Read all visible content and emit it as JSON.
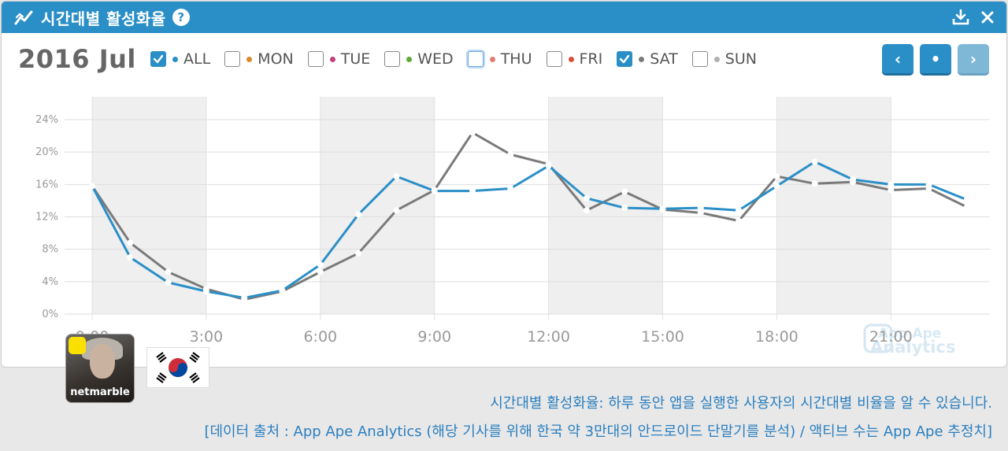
{
  "header": {
    "title": "시간대별 활성화율",
    "help_label": "?"
  },
  "period_label": "2016 Jul",
  "legend": [
    {
      "label": "ALL",
      "checked": true,
      "color": "#2b8fc7"
    },
    {
      "label": "MON",
      "checked": false,
      "color": "#d8892b"
    },
    {
      "label": "TUE",
      "checked": false,
      "color": "#c0407a"
    },
    {
      "label": "WED",
      "checked": false,
      "color": "#5aaa3a"
    },
    {
      "label": "THU",
      "checked": false,
      "color": "#e07b73",
      "focused": true
    },
    {
      "label": "FRI",
      "checked": false,
      "color": "#d9503a"
    },
    {
      "label": "SAT",
      "checked": true,
      "color": "#7a7a7a"
    },
    {
      "label": "SUN",
      "checked": false,
      "color": "#b0b0b0"
    }
  ],
  "nav": {
    "prev": "‹",
    "today": "•",
    "next": "›"
  },
  "watermark": {
    "line1": "App Ape",
    "line2": "Analytics"
  },
  "app": {
    "name": "netmarble"
  },
  "captions": {
    "line1": "시간대별 활성화율: 하루 동안 앱을 실행한 사용자의 시간대별 비율을 알 수 있습니다.",
    "line2": "[데이터 출처 : App Ape Analytics (해당 기사를 위해 한국 약 3만대의 안드로이드 단말기를 분석) / 액티브 수는 App Ape 추정치]"
  },
  "colors": {
    "accent": "#2b8fc7",
    "sat": "#7a7a7a",
    "band": "#efefef"
  },
  "chart_data": {
    "type": "line",
    "x": [
      0,
      1,
      2,
      3,
      4,
      5,
      6,
      7,
      8,
      9,
      10,
      11,
      12,
      13,
      14,
      15,
      16,
      17,
      18,
      19,
      20,
      21,
      22,
      23
    ],
    "xtick_labels": [
      "0:00",
      "3:00",
      "6:00",
      "9:00",
      "12:00",
      "15:00",
      "18:00",
      "21:00"
    ],
    "xtick_hours": [
      0,
      3,
      6,
      9,
      12,
      15,
      18,
      21
    ],
    "ytick_labels": [
      "0%",
      "4%",
      "8%",
      "12%",
      "16%",
      "20%",
      "24%"
    ],
    "ylim": [
      0,
      24
    ],
    "grid": true,
    "series": [
      {
        "name": "ALL",
        "color": "#2b8fc7",
        "values": [
          15.8,
          7.0,
          3.9,
          2.8,
          2.0,
          2.9,
          6.1,
          12.3,
          17.0,
          15.2,
          15.2,
          15.5,
          18.3,
          14.3,
          13.1,
          13.0,
          13.1,
          12.8,
          15.8,
          18.8,
          16.6,
          16.0,
          16.0,
          14.1
        ]
      },
      {
        "name": "SAT",
        "color": "#7a7a7a",
        "values": [
          15.8,
          8.8,
          5.2,
          3.1,
          1.8,
          2.8,
          5.2,
          7.5,
          12.8,
          15.3,
          22.4,
          19.7,
          18.5,
          12.8,
          15.1,
          12.9,
          12.5,
          11.5,
          17.0,
          16.1,
          16.3,
          15.3,
          15.5,
          13.2
        ]
      }
    ]
  }
}
